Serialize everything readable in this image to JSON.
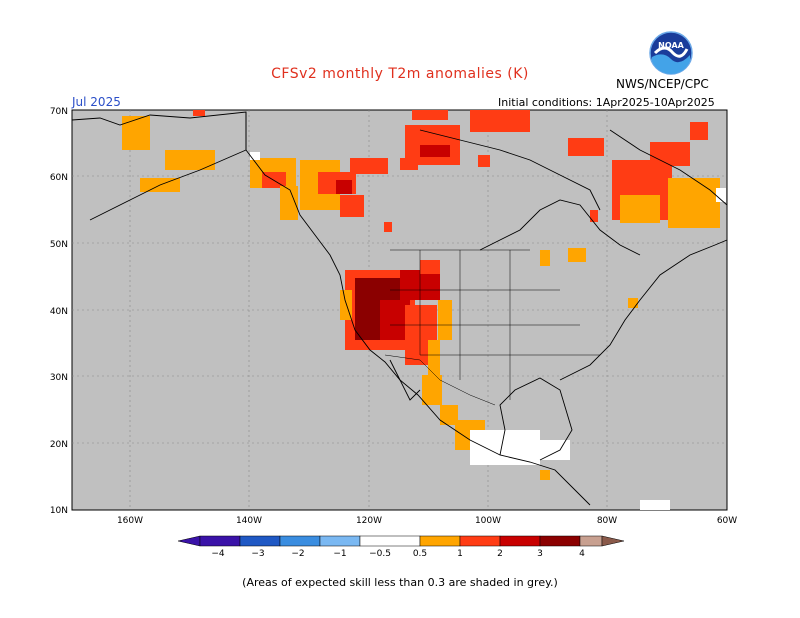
{
  "map": {
    "title": "CFSv2 monthly T2m anomalies (K)",
    "agency": "NWS/NCEP/CPC",
    "logo_text": "NOAA",
    "target_month": "Jul 2025",
    "initial_conditions": "Initial conditions: 1Apr2025-10Apr2025",
    "footnote": "(Areas of expected skill less than 0.3 are shaded in grey.)",
    "lat_labels": [
      "70N",
      "60N",
      "50N",
      "40N",
      "30N",
      "20N",
      "10N"
    ],
    "lon_labels": [
      "160W",
      "140W",
      "120W",
      "100W",
      "80W",
      "60W"
    ],
    "colors": {
      "ocean_land_grey": "#c0c0c0",
      "frame": "#000000"
    }
  },
  "legend": {
    "labels": [
      "−4",
      "−3",
      "−2",
      "−1",
      "−0.5",
      "0.5",
      "1",
      "2",
      "3",
      "4"
    ],
    "colors": [
      "#3a12a8",
      "#1f58c4",
      "#3a8de0",
      "#7ab8f2",
      "#ffffff",
      "#ffa500",
      "#ff3c14",
      "#c80000",
      "#8b0000",
      "#c8a090",
      "#8a5a4a"
    ]
  },
  "anomaly_regions": [
    {
      "name": "Alaska interior",
      "level": "0.5"
    },
    {
      "name": "Yukon",
      "level": "1"
    },
    {
      "name": "Northern Canada Arctic",
      "level": "1"
    },
    {
      "name": "Quebec / Labrador",
      "level": "1"
    },
    {
      "name": "Great Basin",
      "level": "3"
    },
    {
      "name": "Southwest US",
      "level": "2"
    },
    {
      "name": "Western Mexico",
      "level": "0.5"
    }
  ]
}
